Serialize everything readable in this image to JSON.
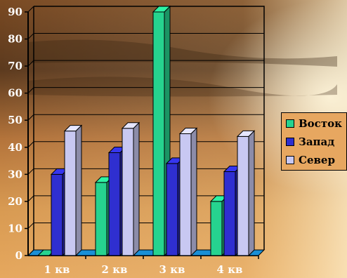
{
  "chart_data": {
    "type": "bar",
    "categories": [
      "1 кв",
      "2 кв",
      "3 кв",
      "4 кв"
    ],
    "series": [
      {
        "name": "Восток",
        "values": [
          0,
          27,
          90,
          20
        ]
      },
      {
        "name": "Запад",
        "values": [
          30,
          38,
          34,
          31
        ]
      },
      {
        "name": "Север",
        "values": [
          46,
          47,
          45,
          44
        ]
      }
    ],
    "ylim": [
      0,
      90
    ],
    "yticks": [
      "0",
      "10",
      "20",
      "30",
      "40",
      "50",
      "60",
      "70",
      "80",
      "90"
    ],
    "grid": true,
    "legend_position": "right",
    "colors": {
      "Восток": "#26d38f",
      "Запад": "#2f2fd0",
      "Север": "#c8c8f2",
      "frame": "#000000"
    },
    "style": "3d-columns-over-photo"
  }
}
